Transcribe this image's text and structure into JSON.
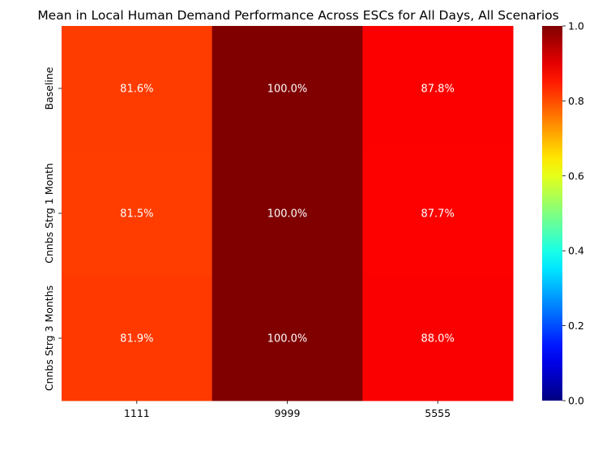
{
  "chart_data": {
    "type": "heatmap",
    "title": "Mean in Local Human Demand Performance Across ESCs for All Days, All Scenarios",
    "x_categories": [
      "1111",
      "9999",
      "5555"
    ],
    "y_categories": [
      "Baseline",
      "Cnnbs Strg 1 Month",
      "Cnnbs Strg 3 Months"
    ],
    "values": [
      [
        0.816,
        1.0,
        0.878
      ],
      [
        0.815,
        1.0,
        0.877
      ],
      [
        0.819,
        1.0,
        0.88
      ]
    ],
    "cell_labels": [
      [
        "81.6%",
        "100.0%",
        "87.8%"
      ],
      [
        "81.5%",
        "100.0%",
        "87.7%"
      ],
      [
        "81.9%",
        "100.0%",
        "88.0%"
      ]
    ],
    "colormap": "jet",
    "colorbar": {
      "range": [
        0,
        1
      ],
      "ticks": [
        "0.0",
        "0.2",
        "0.4",
        "0.6",
        "0.8",
        "1.0"
      ]
    },
    "colors": {
      "cell_text": "#ffffff"
    }
  }
}
